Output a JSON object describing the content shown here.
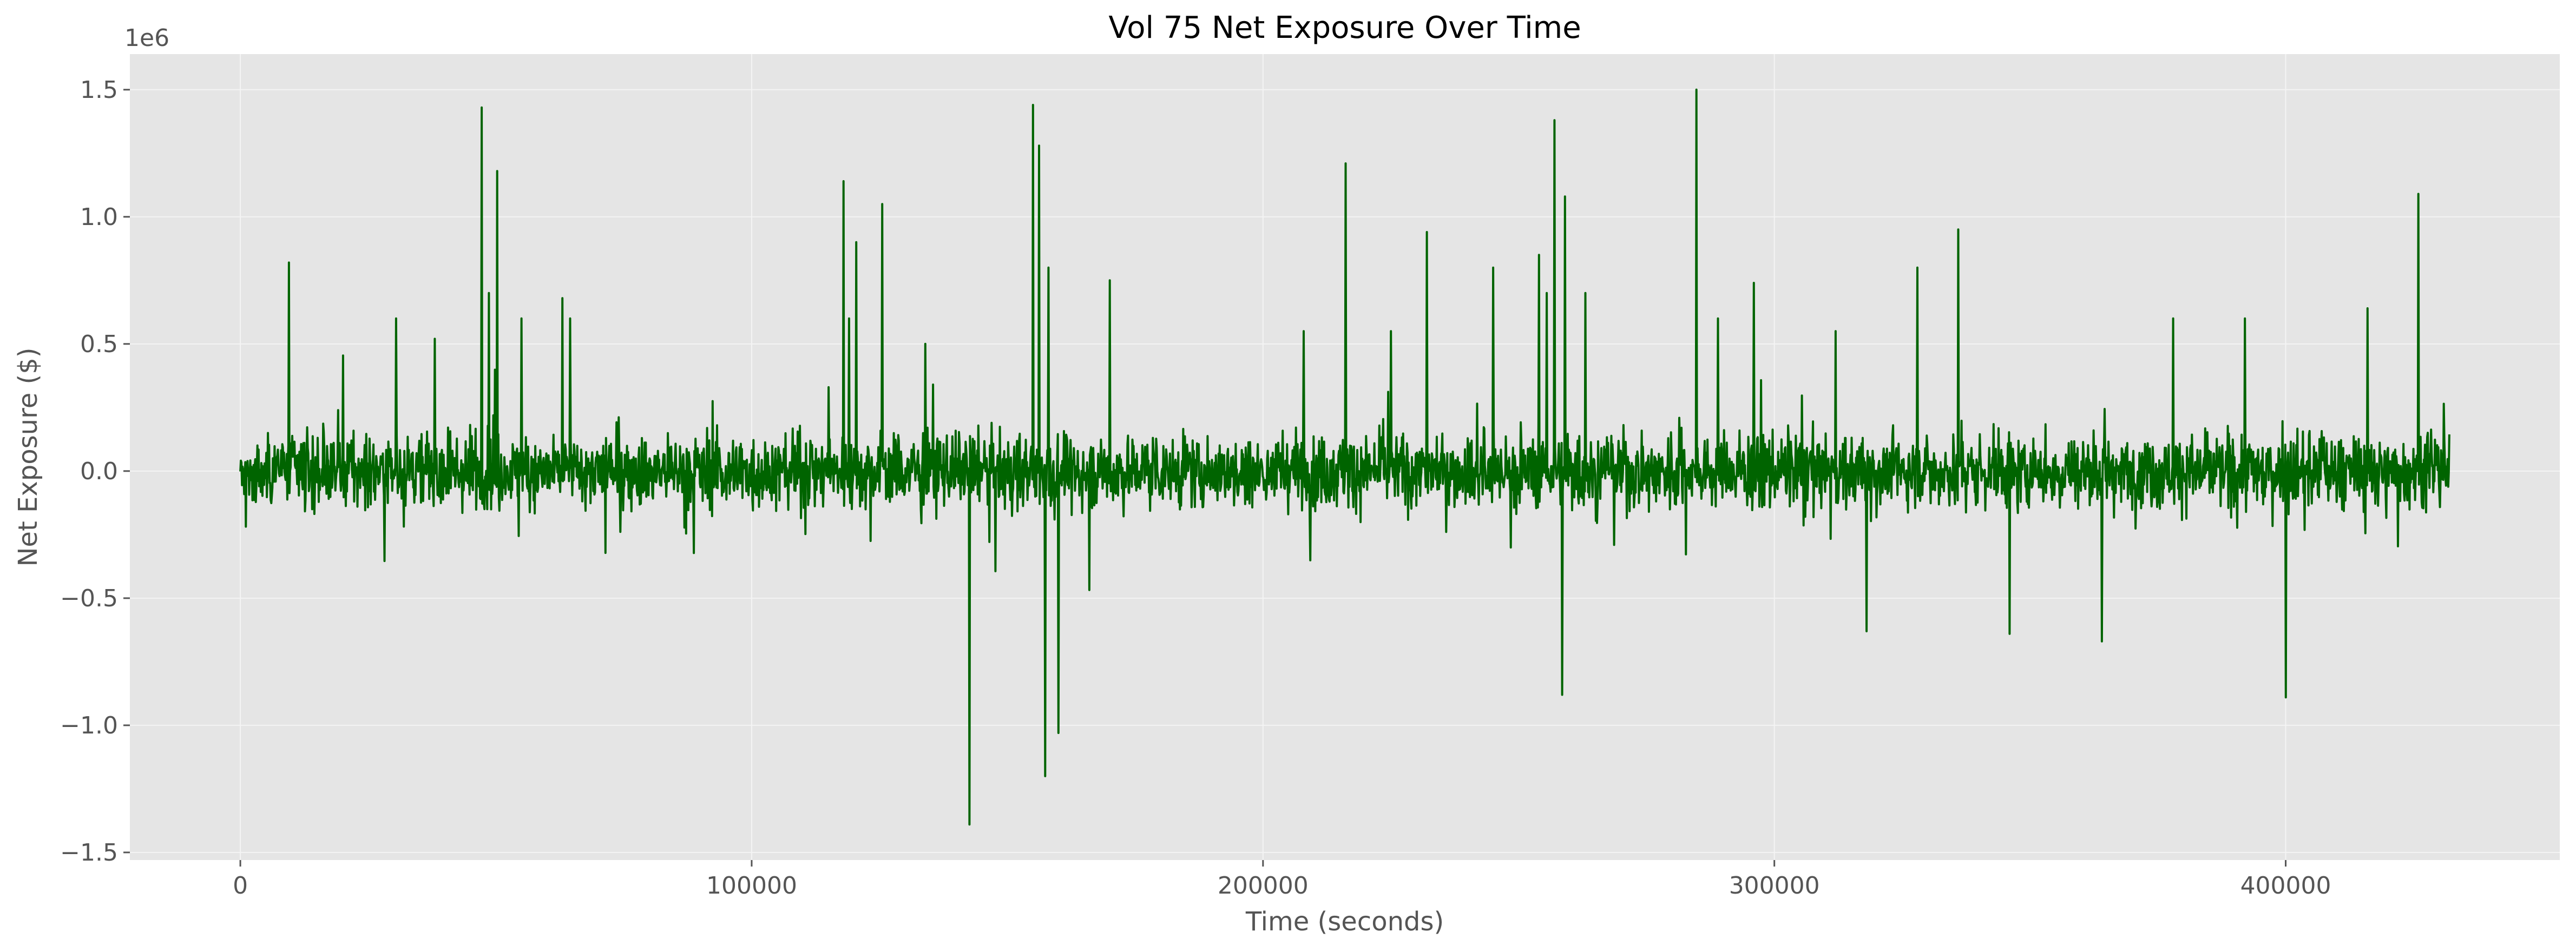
{
  "chart_data": {
    "type": "line",
    "title": "Vol 75 Net Exposure Over Time",
    "xlabel": "Time (seconds)",
    "ylabel": "Net Exposure ($)",
    "y_offset_label": "1e6",
    "xlim": [
      -21600,
      453600
    ],
    "ylim": [
      -1.53,
      1.64
    ],
    "y_scale_factor": 1000000,
    "x_ticks": [
      0,
      100000,
      200000,
      300000,
      400000
    ],
    "x_tick_labels": [
      "0",
      "100000",
      "200000",
      "300000",
      "400000"
    ],
    "y_ticks": [
      -1.5,
      -1.0,
      -0.5,
      0.0,
      0.5,
      1.0,
      1.5
    ],
    "y_tick_labels": [
      "−1.5",
      "−1.0",
      "−0.5",
      "0.0",
      "0.5",
      "1.0",
      "1.5"
    ],
    "grid": true,
    "legend": false,
    "colors": {
      "plot_bg": "#e5e5e5",
      "grid": "#f4f4f4",
      "line": "#006400",
      "text": "#555555",
      "title": "#000000"
    },
    "series": [
      {
        "x_range": [
          0,
          432000
        ],
        "sample_count": 4000,
        "typical_abs_exposure": 0.12,
        "peaks_x": [
          9500,
          30500,
          38000,
          47200,
          48600,
          50200,
          55000,
          63000,
          64500,
          118000,
          119000,
          120500,
          125500,
          134000,
          142600,
          155000,
          156200,
          157400,
          158000,
          160000,
          170000,
          208000,
          216200,
          225000,
          232000,
          245000,
          254000,
          255500,
          257000,
          258500,
          259000,
          263000,
          284800,
          289000,
          296000,
          312000,
          318000,
          328000,
          336000,
          346000,
          364000,
          378000,
          392000,
          400000,
          416000,
          426000
        ],
        "peaks_value": [
          0.82,
          0.6,
          0.52,
          1.43,
          0.7,
          1.18,
          0.6,
          0.68,
          0.6,
          1.14,
          0.6,
          0.9,
          1.05,
          0.5,
          -1.39,
          1.44,
          1.28,
          -1.2,
          0.8,
          -1.03,
          0.75,
          0.55,
          1.21,
          0.55,
          0.94,
          0.8,
          0.85,
          0.7,
          1.38,
          -0.88,
          1.08,
          0.7,
          1.5,
          0.6,
          0.74,
          0.55,
          -0.63,
          0.8,
          0.95,
          -0.64,
          -0.67,
          0.6,
          0.6,
          -0.89,
          0.64,
          1.09
        ]
      }
    ]
  }
}
